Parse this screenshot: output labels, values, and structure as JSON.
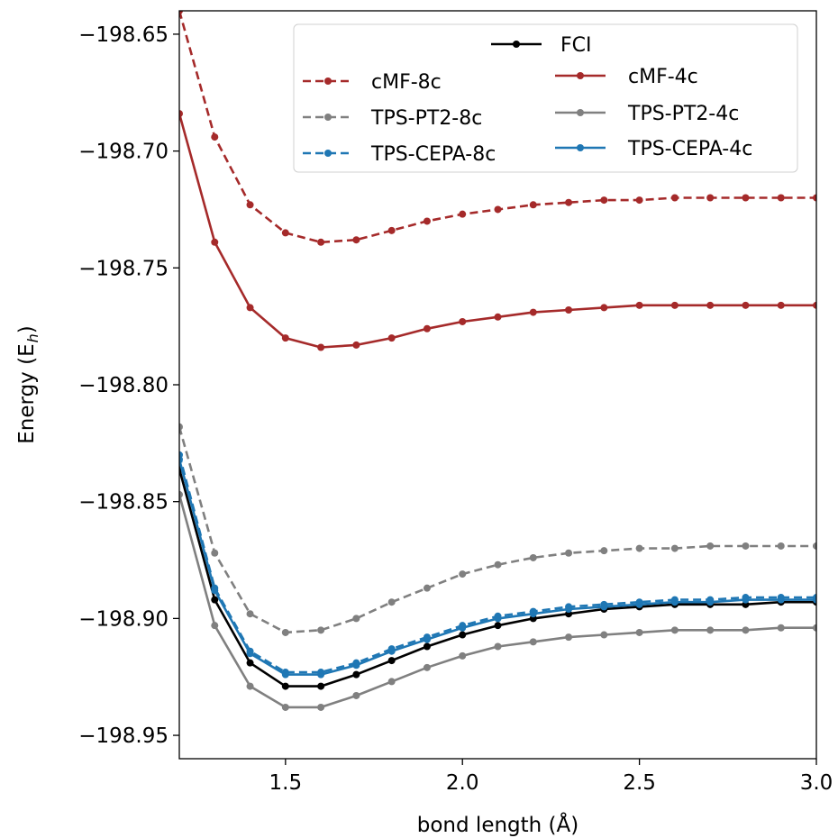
{
  "chart_data": {
    "type": "line",
    "title": "",
    "xlabel": "bond length (Å)",
    "ylabel": "Energy (E_h)",
    "ylabel_main": "Energy (E",
    "ylabel_sub": "h",
    "ylabel_close": ")",
    "xlim": [
      1.2,
      3.0
    ],
    "ylim": [
      -198.96,
      -198.64
    ],
    "xticks": [
      1.5,
      2.0,
      2.5,
      3.0
    ],
    "xtick_labels": [
      "1.5",
      "2.0",
      "2.5",
      "3.0"
    ],
    "yticks": [
      -198.65,
      -198.7,
      -198.75,
      -198.8,
      -198.85,
      -198.9,
      -198.95
    ],
    "ytick_labels": [
      "−198.65",
      "−198.70",
      "−198.75",
      "−198.80",
      "−198.85",
      "−198.90",
      "−198.95"
    ],
    "grid": false,
    "legend_position": "top-right",
    "x": [
      1.2,
      1.3,
      1.4,
      1.5,
      1.6,
      1.7,
      1.8,
      1.9,
      2.0,
      2.1,
      2.2,
      2.3,
      2.4,
      2.5,
      2.6,
      2.7,
      2.8,
      2.9,
      3.0
    ],
    "series": [
      {
        "name": "cMF-8c",
        "color": "#a52a2a",
        "dash": true,
        "values": [
          -198.64,
          -198.694,
          -198.723,
          -198.735,
          -198.739,
          -198.738,
          -198.734,
          -198.73,
          -198.727,
          -198.725,
          -198.723,
          -198.722,
          -198.721,
          -198.721,
          -198.72,
          -198.72,
          -198.72,
          -198.72,
          -198.72
        ]
      },
      {
        "name": "cMF-4c",
        "color": "#a52a2a",
        "dash": false,
        "values": [
          -198.684,
          -198.739,
          -198.767,
          -198.78,
          -198.784,
          -198.783,
          -198.78,
          -198.776,
          -198.773,
          -198.771,
          -198.769,
          -198.768,
          -198.767,
          -198.766,
          -198.766,
          -198.766,
          -198.766,
          -198.766,
          -198.766
        ]
      },
      {
        "name": "TPS-PT2-8c",
        "color": "#808080",
        "dash": true,
        "values": [
          -198.818,
          -198.872,
          -198.898,
          -198.906,
          -198.905,
          -198.9,
          -198.893,
          -198.887,
          -198.881,
          -198.877,
          -198.874,
          -198.872,
          -198.871,
          -198.87,
          -198.87,
          -198.869,
          -198.869,
          -198.869,
          -198.869
        ]
      },
      {
        "name": "TPS-PT2-4c",
        "color": "#808080",
        "dash": false,
        "values": [
          -198.847,
          -198.903,
          -198.929,
          -198.938,
          -198.938,
          -198.933,
          -198.927,
          -198.921,
          -198.916,
          -198.912,
          -198.91,
          -198.908,
          -198.907,
          -198.906,
          -198.905,
          -198.905,
          -198.905,
          -198.904,
          -198.904
        ]
      },
      {
        "name": "FCI",
        "color": "#000000",
        "dash": false,
        "values": [
          -198.836,
          -198.892,
          -198.919,
          -198.929,
          -198.929,
          -198.924,
          -198.918,
          -198.912,
          -198.907,
          -198.903,
          -198.9,
          -198.898,
          -198.896,
          -198.895,
          -198.894,
          -198.894,
          -198.894,
          -198.893,
          -198.893
        ]
      },
      {
        "name": "TPS-CEPA-8c",
        "color": "#1f77b4",
        "dash": true,
        "values": [
          -198.83,
          -198.887,
          -198.914,
          -198.923,
          -198.923,
          -198.919,
          -198.913,
          -198.908,
          -198.903,
          -198.899,
          -198.897,
          -198.895,
          -198.894,
          -198.893,
          -198.892,
          -198.892,
          -198.891,
          -198.891,
          -198.891
        ]
      },
      {
        "name": "TPS-CEPA-4c",
        "color": "#1f77b4",
        "dash": false,
        "values": [
          -198.832,
          -198.888,
          -198.915,
          -198.924,
          -198.924,
          -198.92,
          -198.914,
          -198.909,
          -198.904,
          -198.9,
          -198.898,
          -198.896,
          -198.895,
          -198.894,
          -198.893,
          -198.893,
          -198.892,
          -198.892,
          -198.892
        ]
      }
    ],
    "legend": {
      "top": "FCI",
      "left": [
        "cMF-8c",
        "TPS-PT2-8c",
        "TPS-CEPA-8c"
      ],
      "right": [
        "cMF-4c",
        "TPS-PT2-4c",
        "TPS-CEPA-4c"
      ]
    }
  }
}
